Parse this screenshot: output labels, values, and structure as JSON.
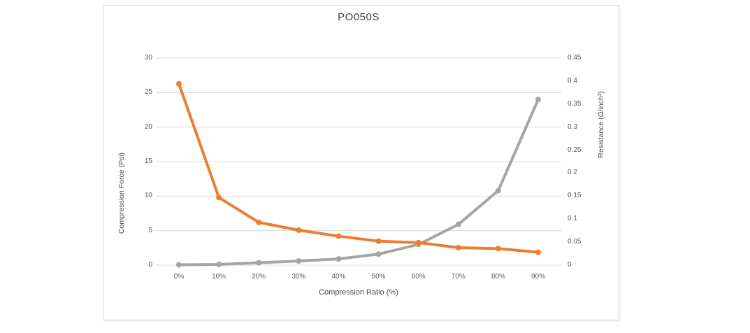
{
  "chart": {
    "colors": {
      "grid": "#D9D9D9",
      "tick_text": "#595959",
      "title_text": "#3F3F3F",
      "panel_border": "#D6D4CC",
      "orange_series": "#ED7D31",
      "gray_series": "#A5A5A5"
    }
  },
  "chart_data": {
    "type": "line",
    "title": "PO050S",
    "xlabel": "Compression Ratio   (%)",
    "ylabel_left": "Compression Force   (Psi)",
    "ylabel_right": "Resistance  (Ω/inch³)",
    "categories": [
      "0%",
      "10%",
      "20%",
      "30%",
      "40%",
      "50%",
      "60%",
      "70%",
      "80%",
      "90%"
    ],
    "series": [
      {
        "name": "Compression Force",
        "axis": "left",
        "color": "#A5A5A5",
        "values": [
          0.05,
          0.1,
          0.35,
          0.6,
          0.9,
          1.6,
          3.0,
          5.9,
          10.8,
          24.0
        ]
      },
      {
        "name": "Resistance",
        "axis": "right",
        "color": "#ED7D31",
        "values": [
          0.394,
          0.147,
          0.093,
          0.076,
          0.063,
          0.052,
          0.049,
          0.038,
          0.036,
          0.028
        ]
      }
    ],
    "y_left": {
      "min": 0,
      "max": 30,
      "ticks": [
        "0",
        "5",
        "10",
        "15",
        "20",
        "25",
        "30"
      ]
    },
    "y_right": {
      "min": 0,
      "max": 0.45,
      "ticks": [
        "0",
        "0.05",
        "0.1",
        "0.15",
        "0.2",
        "0.25",
        "0.3",
        "0.35",
        "0.4",
        "0.45"
      ]
    },
    "grid": true,
    "legend": false
  }
}
